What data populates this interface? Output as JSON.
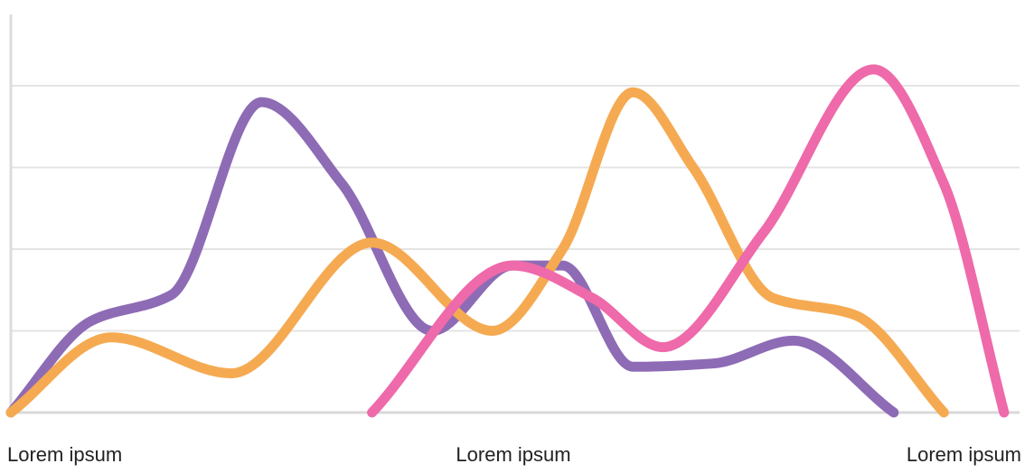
{
  "chart_data": {
    "type": "line",
    "title": "",
    "xlabel": "",
    "ylabel": "",
    "x_tick_labels": [
      "Lorem ipsum",
      "Lorem ipsum",
      "Lorem ipsum"
    ],
    "xlim": [
      0,
      100
    ],
    "ylim": [
      0,
      100
    ],
    "grid": true,
    "legend": "none",
    "series": [
      {
        "color": "#8E6BB5",
        "x": [
          0,
          8,
          16,
          25,
          33,
          42,
          50,
          55,
          62,
          70,
          78,
          88
        ],
        "y": [
          0,
          28,
          36,
          95,
          70,
          25,
          45,
          45,
          14,
          15,
          22,
          0
        ]
      },
      {
        "color": "#F5AA52",
        "x": [
          0,
          10,
          22,
          36,
          48,
          55,
          62,
          68,
          76,
          84,
          93
        ],
        "y": [
          0,
          23,
          12,
          52,
          25,
          50,
          98,
          75,
          35,
          30,
          0
        ]
      },
      {
        "color": "#EE6AAA",
        "x": [
          36,
          50,
          58,
          65,
          75,
          86,
          93,
          99
        ],
        "y": [
          0,
          45,
          35,
          20,
          55,
          105,
          70,
          0
        ]
      }
    ]
  }
}
